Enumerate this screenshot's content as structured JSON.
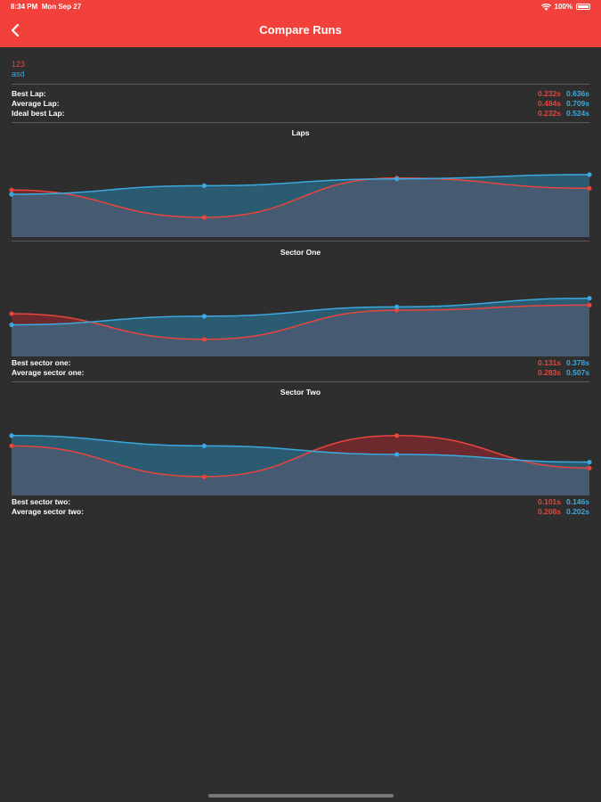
{
  "status": {
    "time": "8:34 PM",
    "date": "Mon Sep 27",
    "battery": "100%"
  },
  "nav": {
    "title": "Compare Runs"
  },
  "runs": {
    "run1": "123",
    "run2": "asd"
  },
  "summary": [
    {
      "label": "Best Lap:",
      "v1": "0.232s",
      "v2": "0.636s"
    },
    {
      "label": "Average Lap:",
      "v1": "0.484s",
      "v2": "0.709s"
    },
    {
      "label": "Ideal best Lap:",
      "v1": "0.232s",
      "v2": "0.524s"
    }
  ],
  "colors": {
    "run1": "#e8453c",
    "run2": "#3ba9e0",
    "header": "#f2413a"
  },
  "chart_data": [
    {
      "type": "area",
      "title": "Laps",
      "x": [
        1,
        2,
        3,
        4
      ],
      "series": [
        {
          "name": "123",
          "values": [
            0.55,
            0.23,
            0.69,
            0.57
          ]
        },
        {
          "name": "asd",
          "values": [
            0.5,
            0.6,
            0.68,
            0.73
          ]
        }
      ]
    },
    {
      "type": "area",
      "title": "Sector One",
      "x": [
        1,
        2,
        3,
        4
      ],
      "series": [
        {
          "name": "123",
          "values": [
            0.5,
            0.2,
            0.54,
            0.6
          ]
        },
        {
          "name": "asd",
          "values": [
            0.37,
            0.47,
            0.58,
            0.68
          ]
        }
      ]
    },
    {
      "type": "area",
      "title": "Sector Two",
      "x": [
        1,
        2,
        3,
        4
      ],
      "series": [
        {
          "name": "123",
          "values": [
            0.58,
            0.22,
            0.7,
            0.32
          ]
        },
        {
          "name": "asd",
          "values": [
            0.7,
            0.58,
            0.48,
            0.39
          ]
        }
      ]
    }
  ],
  "sector_one_stats": [
    {
      "label": "Best sector one:",
      "v1": "0.131s",
      "v2": "0.378s"
    },
    {
      "label": "Average sector one:",
      "v1": "0.283s",
      "v2": "0.507s"
    }
  ],
  "sector_two_stats": [
    {
      "label": "Best sector two:",
      "v1": "0.101s",
      "v2": "0.146s"
    },
    {
      "label": "Average sector two:",
      "v1": "0.208s",
      "v2": "0.202s"
    }
  ]
}
